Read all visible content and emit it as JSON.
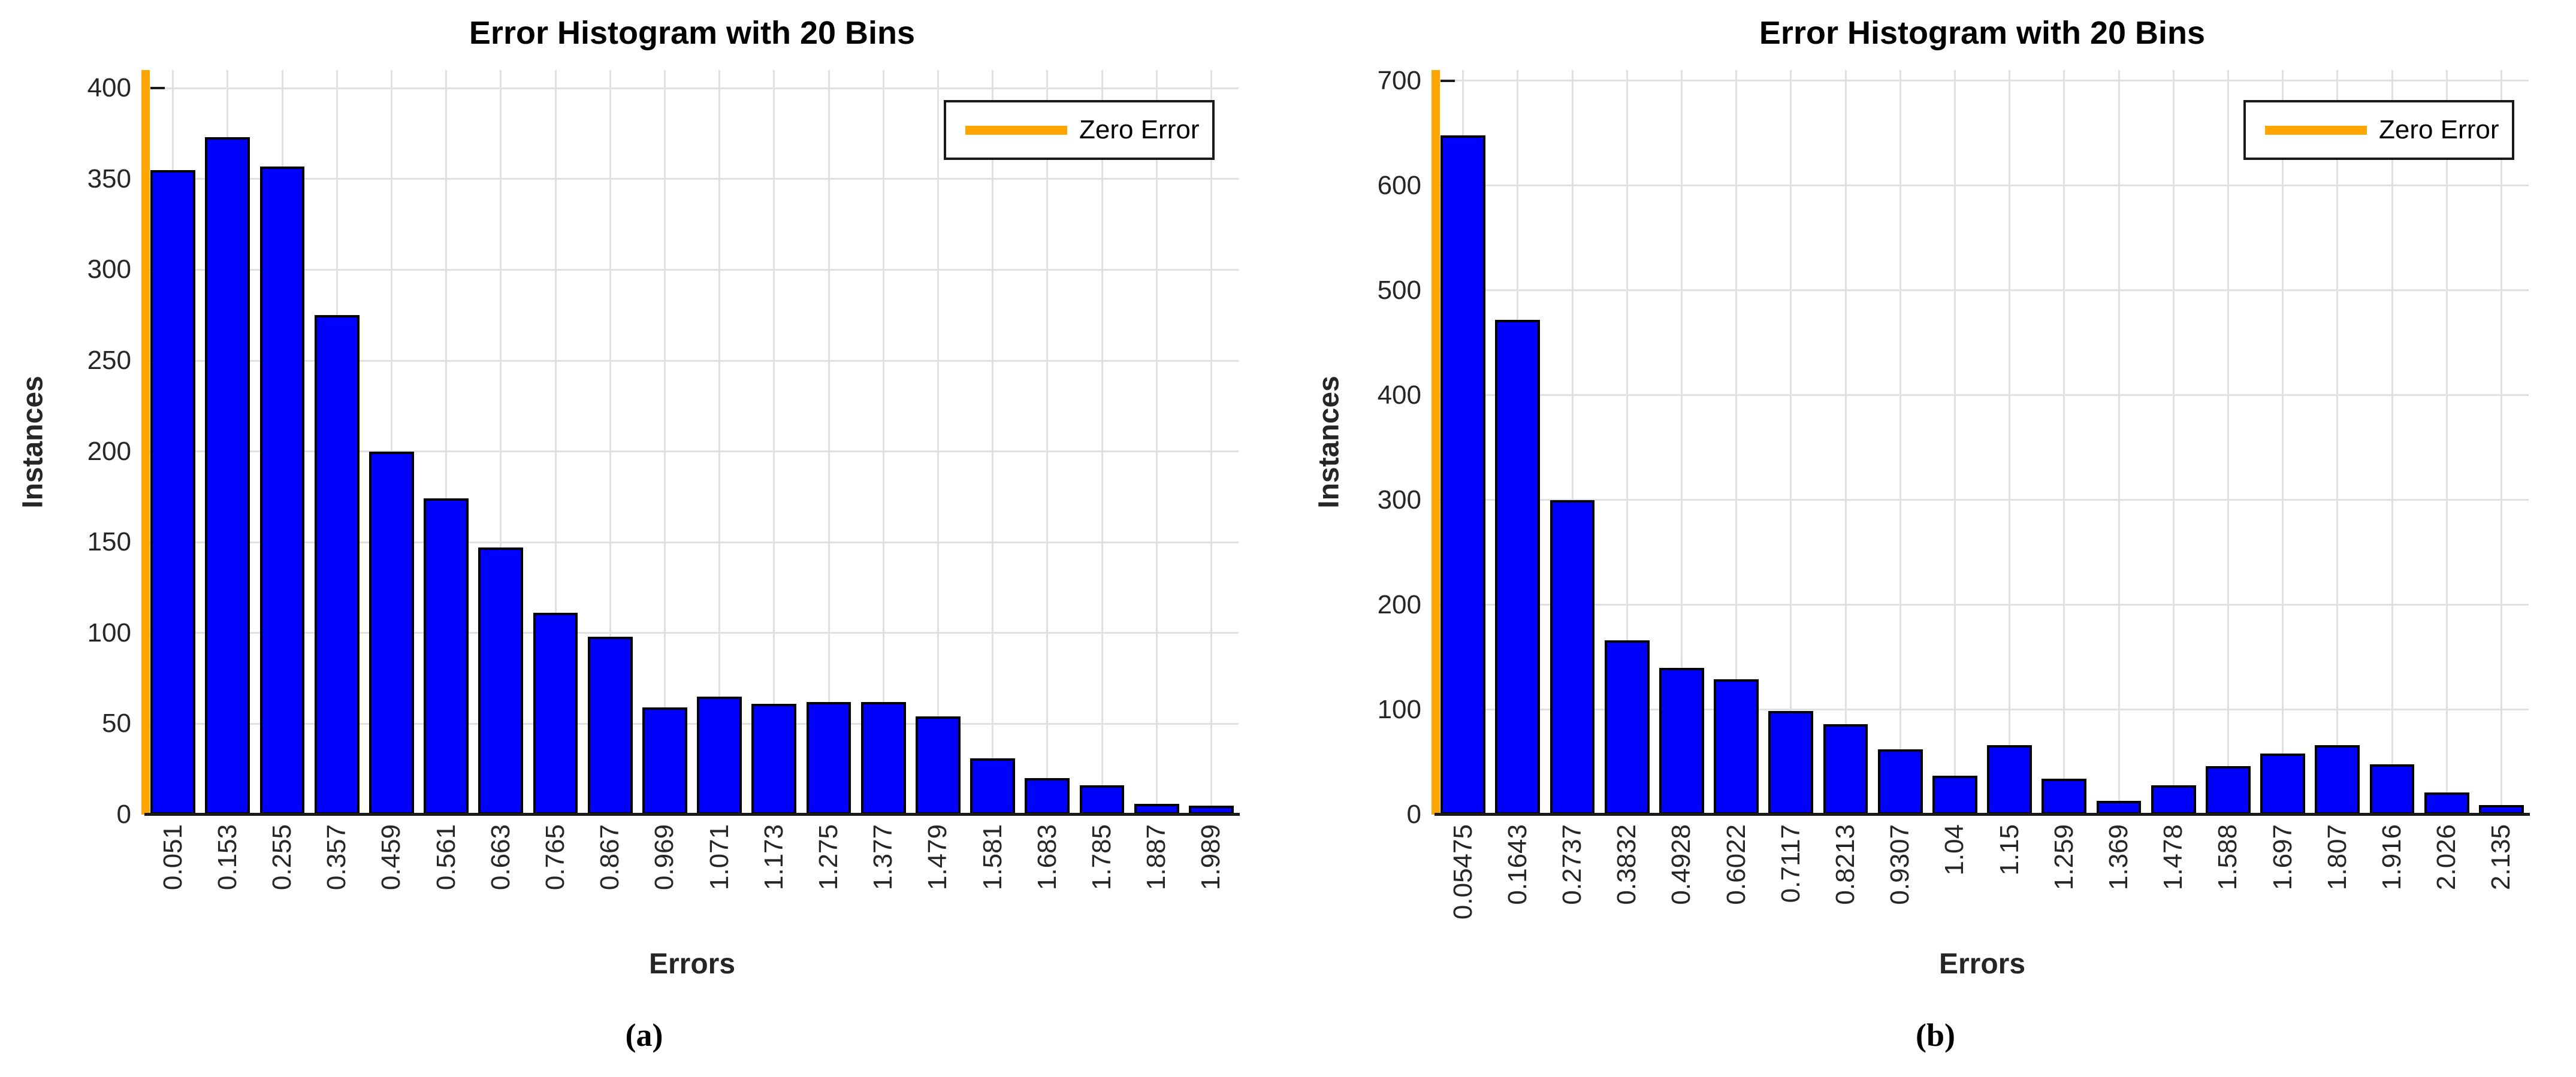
{
  "captions": [
    "(a)",
    "(b)"
  ],
  "colors": {
    "bar_fill": "#0000FF",
    "bar_edge": "#000000",
    "zero_line": "#FFA500",
    "grid": "#E0E0E0",
    "axis": "#1A1A1A",
    "text": "#262626"
  },
  "chart_data": [
    {
      "type": "bar",
      "title": "Error Histogram with 20 Bins",
      "xlabel": "Errors",
      "ylabel": "Instances",
      "legend": {
        "label": "Zero Error",
        "position": "top-right",
        "line_color": "#FFA500"
      },
      "n_bins": 20,
      "grid": true,
      "categories": [
        "0.051",
        "0.153",
        "0.255",
        "0.357",
        "0.459",
        "0.561",
        "0.663",
        "0.765",
        "0.867",
        "0.969",
        "1.071",
        "1.173",
        "1.275",
        "1.377",
        "1.479",
        "1.581",
        "1.683",
        "1.785",
        "1.887",
        "1.989"
      ],
      "values": [
        355,
        373,
        357,
        275,
        200,
        174,
        147,
        111,
        98,
        59,
        65,
        61,
        62,
        62,
        54,
        31,
        20,
        16,
        6,
        5
      ],
      "yticks": [
        0,
        50,
        100,
        150,
        200,
        250,
        300,
        350,
        400
      ],
      "ylim": [
        0,
        410
      ],
      "xlim": [
        0,
        2.04
      ],
      "zero_error_line_x": 0
    },
    {
      "type": "bar",
      "title": "Error Histogram with 20 Bins",
      "xlabel": "Errors",
      "ylabel": "Instances",
      "legend": {
        "label": "Zero Error",
        "position": "top-right",
        "line_color": "#FFA500"
      },
      "n_bins": 20,
      "grid": true,
      "categories": [
        "0.05475",
        "0.1643",
        "0.2737",
        "0.3832",
        "0.4928",
        "0.6022",
        "0.7117",
        "0.8213",
        "0.9307",
        "1.04",
        "1.15",
        "1.259",
        "1.369",
        "1.478",
        "1.588",
        "1.697",
        "1.807",
        "1.916",
        "2.026",
        "2.135"
      ],
      "values": [
        648,
        472,
        300,
        166,
        140,
        129,
        99,
        86,
        62,
        37,
        66,
        34,
        13,
        28,
        46,
        58,
        66,
        48,
        21,
        9
      ],
      "yticks": [
        0,
        100,
        200,
        300,
        400,
        500,
        600,
        700
      ],
      "ylim": [
        0,
        710
      ],
      "xlim": [
        0,
        2.19
      ],
      "zero_error_line_x": 0
    }
  ]
}
